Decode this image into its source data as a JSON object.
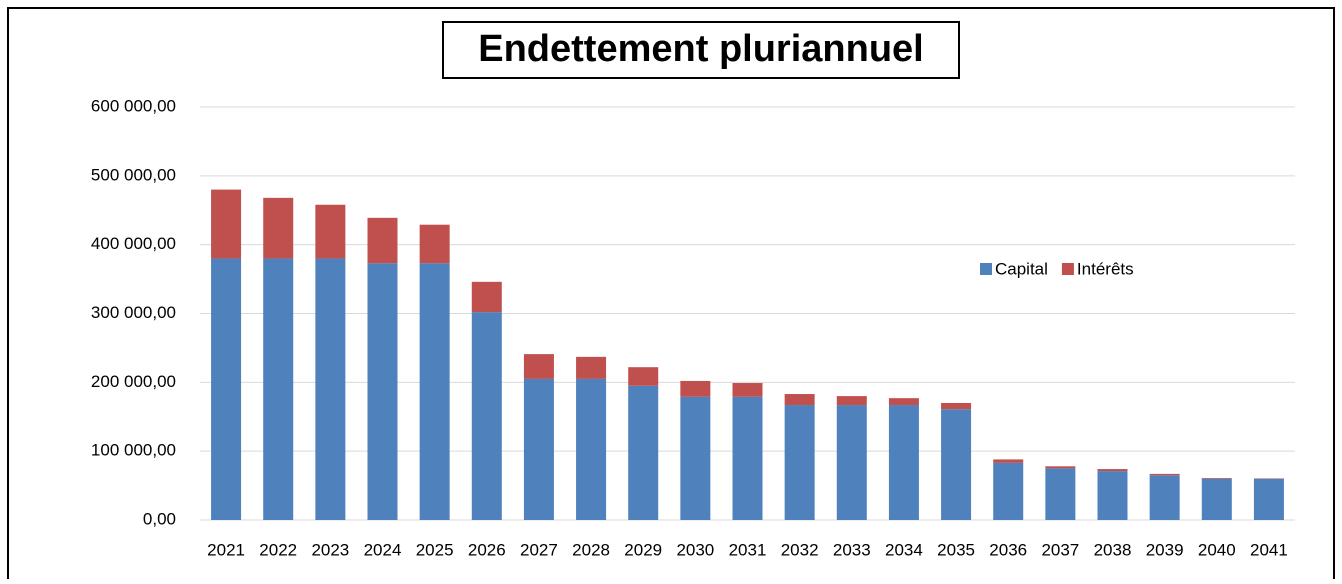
{
  "chart_data": {
    "type": "stacked_bar",
    "title": "Endettement pluriannuel",
    "categories": [
      "2021",
      "2022",
      "2023",
      "2024",
      "2025",
      "2026",
      "2027",
      "2028",
      "2029",
      "2030",
      "2031",
      "2032",
      "2033",
      "2034",
      "2035",
      "2036",
      "2037",
      "2038",
      "2039",
      "2040",
      "2041"
    ],
    "series": [
      {
        "name": "Capital",
        "color": "#4f81bd",
        "values": [
          380000,
          380000,
          380000,
          373000,
          373000,
          302000,
          205000,
          205000,
          195000,
          179000,
          179000,
          167000,
          167000,
          167000,
          161000,
          83000,
          75000,
          71000,
          65000,
          60000,
          60000
        ]
      },
      {
        "name": "Intérêts",
        "color": "#c0504d",
        "values": [
          100000,
          88000,
          78000,
          66000,
          56000,
          44000,
          36000,
          32000,
          27000,
          23000,
          20000,
          16000,
          13000,
          10000,
          9000,
          5000,
          3000,
          3000,
          2000,
          1000,
          500
        ]
      }
    ],
    "ylim": [
      0,
      600000
    ],
    "yticks": [
      {
        "value": 0,
        "label": "0,00"
      },
      {
        "value": 100000,
        "label": "100 000,00"
      },
      {
        "value": 200000,
        "label": "200 000,00"
      },
      {
        "value": 300000,
        "label": "300 000,00"
      },
      {
        "value": 400000,
        "label": "400 000,00"
      },
      {
        "value": 500000,
        "label": "500 000,00"
      },
      {
        "value": 600000,
        "label": "600 000,00"
      }
    ],
    "grid": true,
    "legend": "right"
  }
}
